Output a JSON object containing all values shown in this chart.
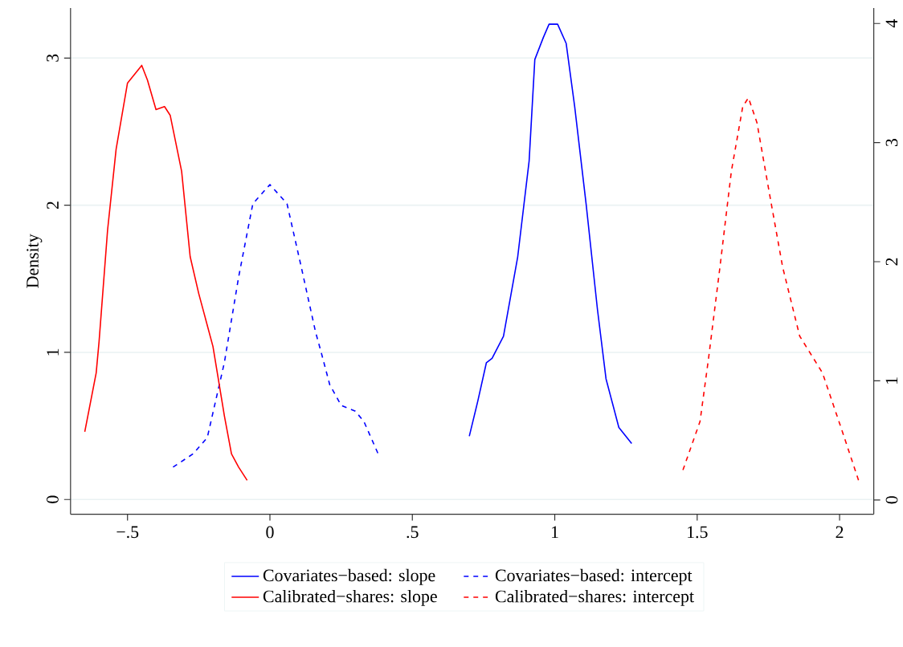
{
  "chart_data": {
    "type": "line",
    "ylabel": "Density",
    "xlim": [
      -0.7,
      2.12
    ],
    "ylim": [
      -0.1,
      3.34
    ],
    "y2lim": [
      -0.12,
      4.13
    ],
    "xticks": [
      {
        "value": -0.5,
        "label": "−.5"
      },
      0,
      {
        "value": 0.5,
        "label": ".5"
      },
      1,
      1.5,
      2
    ],
    "yticks": [
      0,
      1,
      2,
      3
    ],
    "y2ticks": [
      0,
      1,
      2,
      3,
      4
    ],
    "grid": "y",
    "legend": "bottom",
    "series": [
      {
        "name": "Covariates−based: slope",
        "color": "#0000ff",
        "line_style": "solid",
        "x": [
          0.7,
          0.73,
          0.76,
          0.78,
          0.82,
          0.87,
          0.91,
          0.93,
          0.96,
          0.98,
          1.01,
          1.04,
          1.07,
          1.11,
          1.15,
          1.18,
          1.225,
          1.27
        ],
        "values": [
          0.43,
          0.67,
          0.93,
          0.96,
          1.11,
          1.65,
          2.3,
          2.99,
          3.14,
          3.23,
          3.23,
          3.1,
          2.67,
          2.01,
          1.29,
          0.82,
          0.49,
          0.38
        ]
      },
      {
        "name": "Covariates−based: intercept",
        "color": "#0000ff",
        "line_style": "dashed",
        "x": [
          -0.34,
          -0.27,
          -0.22,
          -0.16,
          -0.11,
          -0.06,
          0.0,
          0.06,
          0.11,
          0.16,
          0.18,
          0.21,
          0.25,
          0.3,
          0.33,
          0.38
        ],
        "values": [
          0.22,
          0.31,
          0.42,
          0.93,
          1.51,
          2.01,
          2.14,
          2.01,
          1.58,
          1.14,
          1.0,
          0.78,
          0.64,
          0.6,
          0.53,
          0.31
        ]
      },
      {
        "name": "Calibrated−shares: slope",
        "color": "#ff0000",
        "line_style": "solid",
        "x": [
          -0.65,
          -0.61,
          -0.6,
          -0.57,
          -0.54,
          -0.5,
          -0.45,
          -0.43,
          -0.4,
          -0.37,
          -0.35,
          -0.31,
          -0.28,
          -0.25,
          -0.2,
          -0.16,
          -0.135,
          -0.11,
          -0.08
        ],
        "values": [
          0.46,
          0.86,
          1.07,
          1.83,
          2.38,
          2.83,
          2.95,
          2.85,
          2.65,
          2.67,
          2.61,
          2.23,
          1.65,
          1.4,
          1.04,
          0.57,
          0.31,
          0.22,
          0.13
        ]
      },
      {
        "name": "Calibrated−shares: intercept",
        "color": "#ff0000",
        "line_style": "dashed",
        "x": [
          1.45,
          1.51,
          1.54,
          1.58,
          1.62,
          1.66,
          1.68,
          1.71,
          1.75,
          1.8,
          1.86,
          1.94,
          2.01,
          2.07
        ],
        "values": [
          0.2,
          0.53,
          0.96,
          1.58,
          2.23,
          2.67,
          2.73,
          2.56,
          2.12,
          1.58,
          1.11,
          0.86,
          0.46,
          0.11
        ]
      }
    ]
  }
}
